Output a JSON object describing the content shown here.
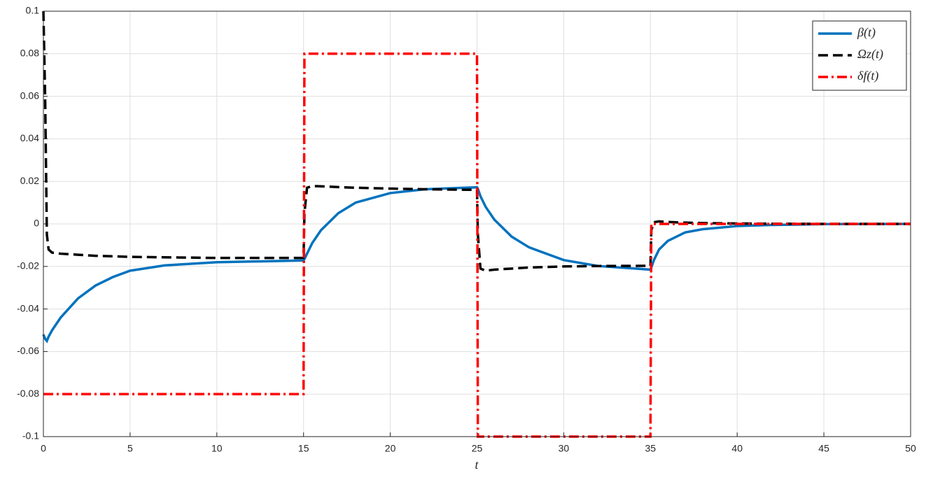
{
  "chart_data": {
    "type": "line",
    "xlabel": "t",
    "x": [
      0,
      0.1,
      0.2,
      0.3,
      0.5,
      1,
      2,
      3,
      4,
      5,
      7,
      10,
      12,
      15,
      15.05,
      15.2,
      15.5,
      16,
      17,
      18,
      20,
      22,
      25,
      25.05,
      25.2,
      25.5,
      26,
      27,
      28,
      30,
      32,
      35,
      35.05,
      35.2,
      35.5,
      36,
      37,
      38,
      40,
      42,
      45,
      50
    ],
    "series": [
      {
        "name": "β(t)",
        "color": "#0072bd",
        "style": "solid",
        "values": [
          -0.052,
          -0.054,
          -0.055,
          -0.053,
          -0.05,
          -0.044,
          -0.035,
          -0.029,
          -0.025,
          -0.022,
          -0.0195,
          -0.018,
          -0.0177,
          -0.0172,
          -0.0165,
          -0.014,
          -0.009,
          -0.003,
          0.005,
          0.01,
          0.0145,
          0.0163,
          0.0172,
          0.0165,
          0.013,
          0.008,
          0.002,
          -0.006,
          -0.011,
          -0.017,
          -0.0198,
          -0.0215,
          -0.0205,
          -0.017,
          -0.012,
          -0.008,
          -0.004,
          -0.0025,
          -0.001,
          -0.0005,
          -0.0001,
          0
        ]
      },
      {
        "name": "Ωz(t)",
        "color": "#000000",
        "style": "dashed",
        "values": [
          0.1,
          0.06,
          -0.005,
          -0.012,
          -0.0135,
          -0.014,
          -0.0145,
          -0.015,
          -0.0152,
          -0.0155,
          -0.0157,
          -0.016,
          -0.016,
          -0.016,
          0.005,
          0.017,
          0.0178,
          0.0177,
          0.0173,
          0.017,
          0.0166,
          0.0163,
          0.016,
          -0.005,
          -0.021,
          -0.022,
          -0.0215,
          -0.021,
          -0.0205,
          -0.02,
          -0.0198,
          -0.0197,
          -0.003,
          0.0008,
          0.0012,
          0.0009,
          0.0006,
          0.0004,
          0.0002,
          0.0001,
          0,
          0
        ]
      },
      {
        "name": "δf(t)",
        "color": "#ff0000",
        "style": "dashdot",
        "values": [
          -0.08,
          -0.08,
          -0.08,
          -0.08,
          -0.08,
          -0.08,
          -0.08,
          -0.08,
          -0.08,
          -0.08,
          -0.08,
          -0.08,
          -0.08,
          -0.08,
          0.08,
          0.08,
          0.08,
          0.08,
          0.08,
          0.08,
          0.08,
          0.08,
          0.08,
          -0.1,
          -0.1,
          -0.1,
          -0.1,
          -0.1,
          -0.1,
          -0.1,
          -0.1,
          -0.1,
          0,
          0,
          0,
          0,
          0,
          0,
          0,
          0,
          0,
          0
        ]
      }
    ],
    "xlim": [
      0,
      50
    ],
    "xticks": [
      0,
      5,
      10,
      15,
      20,
      25,
      30,
      35,
      40,
      45,
      50
    ],
    "ylim": [
      -0.1,
      0.1
    ],
    "yticks": [
      -0.1,
      -0.08,
      -0.06,
      -0.04,
      -0.02,
      0,
      0.02,
      0.04,
      0.06,
      0.08,
      0.1
    ],
    "grid": true,
    "legend": "top-right"
  }
}
